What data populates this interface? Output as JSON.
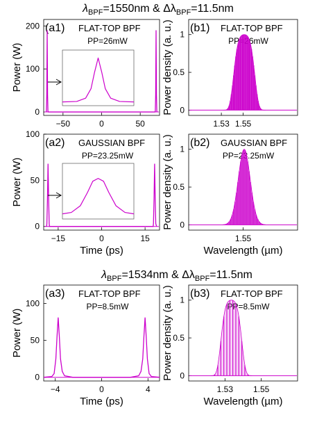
{
  "headers": [
    {
      "lambda": "1550nm",
      "delta": "11.5nm"
    },
    {
      "lambda": "1534nm",
      "delta": "11.5nm"
    }
  ],
  "header_symbols": {
    "lambda": "λ",
    "delta": "Δλ",
    "sub": "BPF",
    "amp": "&"
  },
  "colors": {
    "trace": "#cc00cc",
    "axis": "#000000"
  },
  "chart_data": [
    {
      "id": "a1",
      "type": "line",
      "panel_label": "(a1)",
      "filter": "FLAT-TOP  BPF",
      "pp": "PP=26mW",
      "ylabel": "Power (W)",
      "xlabel": "",
      "xlim": [
        -75,
        75
      ],
      "ylim": [
        -8,
        215
      ],
      "xticks": [
        -50,
        0,
        50
      ],
      "yticks": [
        0,
        100,
        200
      ],
      "x": [
        -72,
        -71.5,
        -71,
        -70.5,
        -70,
        -69.5,
        -69,
        69,
        69.5,
        70,
        70.5,
        71,
        71.5,
        72
      ],
      "y": [
        0,
        2,
        40,
        190,
        40,
        2,
        0,
        0,
        2,
        40,
        190,
        40,
        2,
        0
      ],
      "inset": {
        "profile": "sharp",
        "x": [
          -1,
          -0.6,
          -0.35,
          -0.2,
          -0.1,
          0,
          0.1,
          0.2,
          0.35,
          0.6,
          1
        ],
        "y": [
          0.02,
          0.03,
          0.1,
          0.3,
          0.65,
          0.95,
          0.65,
          0.3,
          0.1,
          0.03,
          0.02
        ]
      }
    },
    {
      "id": "b1",
      "type": "area",
      "panel_label": "(b1)",
      "filter": "FLAT-TOP  BPF",
      "pp": "PP=26mW",
      "ylabel": "Power density (a. u.)",
      "xlabel": "",
      "xlim": [
        1.5,
        1.6
      ],
      "ylim": [
        -0.07,
        1.2
      ],
      "xticks": [
        1.53,
        1.55
      ],
      "yticks": [
        0,
        0.5,
        1
      ],
      "envelope": {
        "center": 1.551,
        "half_width": 0.0115,
        "peak": 1.0,
        "profile": "flat-top",
        "fringes": 38
      }
    },
    {
      "id": "a2",
      "type": "line",
      "panel_label": "(a2)",
      "filter": "GAUSSIAN  BPF",
      "pp": "PP=23.25mW",
      "ylabel": "Power (W)",
      "xlabel": "Time (ps)",
      "xlim": [
        -20,
        20
      ],
      "ylim": [
        -4,
        100
      ],
      "xticks": [
        -15,
        0,
        15
      ],
      "yticks": [
        0,
        50,
        100
      ],
      "x": [
        -19,
        -18.9,
        -18.7,
        -18.5,
        -18.3,
        -18.1,
        -18,
        17.8,
        17.9,
        18.1,
        18.3,
        18.5,
        18.7,
        19
      ],
      "y": [
        0,
        3,
        30,
        68,
        30,
        3,
        0,
        0,
        3,
        30,
        68,
        30,
        3,
        0
      ],
      "inset": {
        "profile": "smooth",
        "x": [
          -1,
          -0.75,
          -0.5,
          -0.3,
          -0.15,
          0,
          0.15,
          0.3,
          0.5,
          0.75,
          1
        ],
        "y": [
          0.05,
          0.08,
          0.22,
          0.5,
          0.74,
          0.8,
          0.74,
          0.5,
          0.22,
          0.08,
          0.05
        ]
      }
    },
    {
      "id": "b2",
      "type": "area",
      "panel_label": "(b2)",
      "filter": "GAUSSIAN  BPF",
      "pp": "PP=23.25mW",
      "ylabel": "Power density (a. u.)",
      "xlabel": "Wavelength (µm)",
      "xlim": [
        1.5,
        1.6
      ],
      "ylim": [
        -0.07,
        1.2
      ],
      "xticks": [
        1.55
      ],
      "yticks": [
        0,
        0.5,
        1
      ],
      "envelope": {
        "center": 1.551,
        "half_width": 0.0115,
        "peak": 1.0,
        "profile": "gaussian",
        "fringes": 30
      }
    },
    {
      "id": "a3",
      "type": "line",
      "panel_label": "(a3)",
      "filter": "FLAT-TOP BPF",
      "pp": "PP=8.5mW",
      "ylabel": "Power (W)",
      "xlabel": "Time (ps)",
      "xlim": [
        -5,
        5
      ],
      "ylim": [
        -5,
        125
      ],
      "xticks": [
        -4,
        0,
        4
      ],
      "yticks": [
        0,
        50,
        100
      ],
      "x": [
        -5,
        -4.3,
        -4.1,
        -3.95,
        -3.85,
        -3.75,
        -3.65,
        -3.55,
        -3.4,
        -3.2,
        -2.5,
        2.5,
        3.2,
        3.4,
        3.55,
        3.65,
        3.75,
        3.85,
        3.95,
        4.1,
        4.3,
        5
      ],
      "y": [
        0,
        1,
        5,
        25,
        55,
        81,
        55,
        25,
        8,
        2,
        0,
        0,
        2,
        8,
        25,
        55,
        81,
        55,
        25,
        5,
        1,
        0
      ]
    },
    {
      "id": "b3",
      "type": "area",
      "panel_label": "(b3)",
      "filter": "FLAT-TOP  BPF",
      "pp": "PP=8.5mW",
      "ylabel": "Power density (a. u.)",
      "xlabel": "Wavelength (µm)",
      "xlim": [
        1.51,
        1.57
      ],
      "ylim": [
        -0.07,
        1.2
      ],
      "xticks": [
        1.53,
        1.55
      ],
      "yticks": [
        0,
        0.5,
        1
      ],
      "envelope": {
        "center": 1.5335,
        "half_width": 0.0068,
        "peak": 1.0,
        "profile": "flat-top",
        "fringes": 14
      }
    }
  ]
}
